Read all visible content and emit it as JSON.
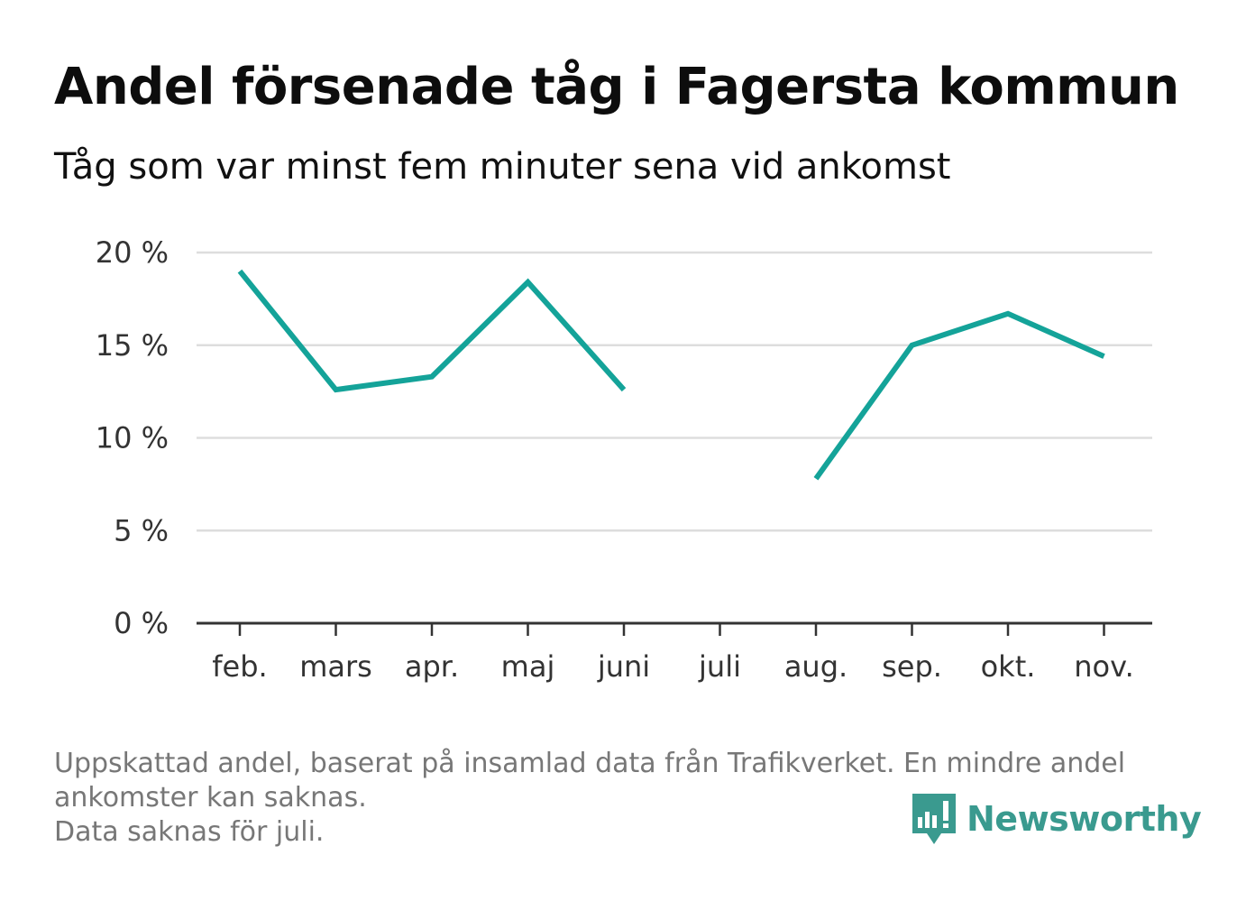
{
  "title": "Andel försenade tåg i Fagersta kommun",
  "subtitle": "Tåg som var minst fem minuter sena vid ankomst",
  "footnote": {
    "line1": "Uppskattad andel, baserat på insamlad data från Trafikverket. En mindre andel",
    "line2": "ankomster kan saknas.",
    "line3": "Data saknas för juli."
  },
  "logo": {
    "text": "Newsworthy",
    "icon": "newsworthy-logo-icon",
    "color": "#3a9a8f"
  },
  "colors": {
    "line": "#14a399",
    "grid": "#dddddd",
    "axis": "#333333"
  },
  "chart_data": {
    "type": "line",
    "title": "Andel försenade tåg i Fagersta kommun",
    "subtitle": "Tåg som var minst fem minuter sena vid ankomst",
    "categories": [
      "feb.",
      "mars",
      "apr.",
      "maj",
      "juni",
      "juli",
      "aug.",
      "sep.",
      "okt.",
      "nov."
    ],
    "series": [
      {
        "values": [
          19.0,
          12.6,
          13.3,
          18.4,
          12.6,
          null,
          7.8,
          15.0,
          16.7,
          14.4
        ]
      }
    ],
    "yticks": [
      0,
      5,
      10,
      15,
      20
    ],
    "ytick_labels": [
      "0 %",
      "5 %",
      "10 %",
      "15 %",
      "20 %"
    ],
    "ylim": [
      0,
      20
    ],
    "grid": true,
    "xlabel": "",
    "ylabel": ""
  }
}
